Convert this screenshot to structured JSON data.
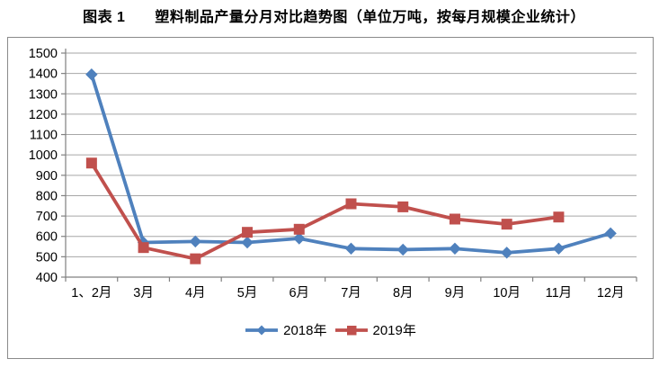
{
  "title": "图表 1　　塑料制品产量分月对比趋势图（单位万吨，按每月规模企业统计）",
  "colors": {
    "series_2018": "#4F81BD",
    "series_2019": "#C0504D",
    "gridline": "#A6A6A6",
    "axis": "#808080",
    "frame_border": "#8A8A8A",
    "tick_label": "#000000",
    "background": "#FFFFFF"
  },
  "chart_data": {
    "type": "line",
    "title": "图表 1　　塑料制品产量分月对比趋势图（单位万吨，按每月规模企业统计）",
    "categories": [
      "1、2月",
      "3月",
      "4月",
      "5月",
      "6月",
      "7月",
      "8月",
      "9月",
      "10月",
      "11月",
      "12月"
    ],
    "series": [
      {
        "name": "2018年",
        "color": "#4F81BD",
        "marker": "diamond",
        "values": [
          1395,
          570,
          575,
          570,
          590,
          540,
          535,
          540,
          520,
          540,
          615
        ]
      },
      {
        "name": "2019年",
        "color": "#C0504D",
        "marker": "square",
        "values": [
          960,
          545,
          490,
          620,
          635,
          760,
          745,
          685,
          660,
          695,
          null
        ]
      }
    ],
    "xlabel": "",
    "ylabel": "",
    "ylim": [
      400,
      1500
    ],
    "ytick_step": 100,
    "grid": true,
    "legend_position": "bottom"
  }
}
